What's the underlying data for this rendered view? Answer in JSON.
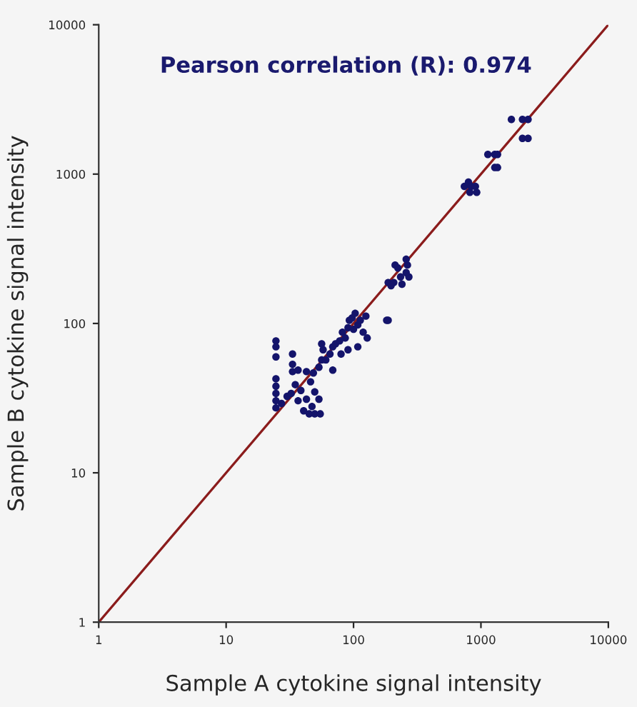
{
  "chart_data": {
    "type": "scatter",
    "xlabel": "Sample A cytokine signal intensity",
    "ylabel": "Sample B cytokine signal intensity",
    "annotations": [
      "Pearson correlation (R): 0.974"
    ],
    "log": "xy",
    "xlim": [
      1,
      10000
    ],
    "ylim": [
      1,
      10000
    ],
    "xticks": [
      1,
      10,
      100,
      1000,
      10000
    ],
    "yticks": [
      1,
      10,
      100,
      1000,
      10000
    ],
    "grid": false,
    "legend": false,
    "series": [
      {
        "marker": "circle",
        "color": "#14146b",
        "x": [
          24.6,
          24.6,
          24.6,
          24.6,
          24.6,
          24.6,
          24.6,
          24.6,
          27.2,
          30.1,
          32.4,
          36.7,
          40.6,
          44.9,
          49.6,
          54.8,
          47.2,
          42.7,
          38.6,
          34.9,
          33.2,
          33.2,
          33.2,
          36.7,
          42.7,
          46.0,
          49.6,
          53.5,
          48.4,
          53.5,
          56.2,
          60.6,
          57.7,
          65.3,
          68.7,
          56.2,
          72.2,
          77.8,
          81.8,
          86.1,
          90.5,
          92.7,
          100,
          108,
          97.5,
          79.8,
          68.7,
          90.5,
          108,
          119,
          128,
          113,
          125,
          103,
          182,
          187,
          212,
          223,
          265,
          187,
          207,
          234,
          240,
          272,
          197,
          259,
          259,
          741,
          798,
          819,
          839,
          905,
          927,
          1133,
          1284,
          1350,
          1284,
          1350,
          1734,
          2118,
          2344,
          2118,
          2344
        ],
        "values": [
          76.4,
          69.8,
          59.7,
          42.6,
          38.0,
          34.0,
          30.4,
          27.2,
          29.1,
          32.5,
          34.0,
          30.4,
          26.0,
          24.8,
          24.8,
          24.8,
          27.8,
          31.1,
          35.6,
          38.9,
          47.6,
          53.3,
          62.4,
          48.7,
          47.6,
          40.7,
          34.8,
          31.1,
          46.6,
          50.9,
          57.0,
          57.0,
          66.7,
          62.4,
          69.8,
          73.0,
          73.0,
          76.4,
          87.4,
          79.9,
          93.5,
          105,
          91.4,
          97.8,
          109,
          62.4,
          48.7,
          66.7,
          69.8,
          87.4,
          79.9,
          105,
          112,
          117,
          105,
          105,
          246,
          235,
          246,
          188,
          188,
          205,
          183,
          205,
          179,
          269,
          219,
          827,
          884,
          755,
          827,
          827,
          755,
          1354,
          1354,
          1354,
          1107,
          1107,
          2323,
          2323,
          2323,
          1734,
          1734
        ]
      },
      {
        "type": "line",
        "marker": "none",
        "color": "#8b1c1c",
        "x": [
          1,
          10000
        ],
        "values": [
          1,
          10000
        ]
      }
    ]
  }
}
